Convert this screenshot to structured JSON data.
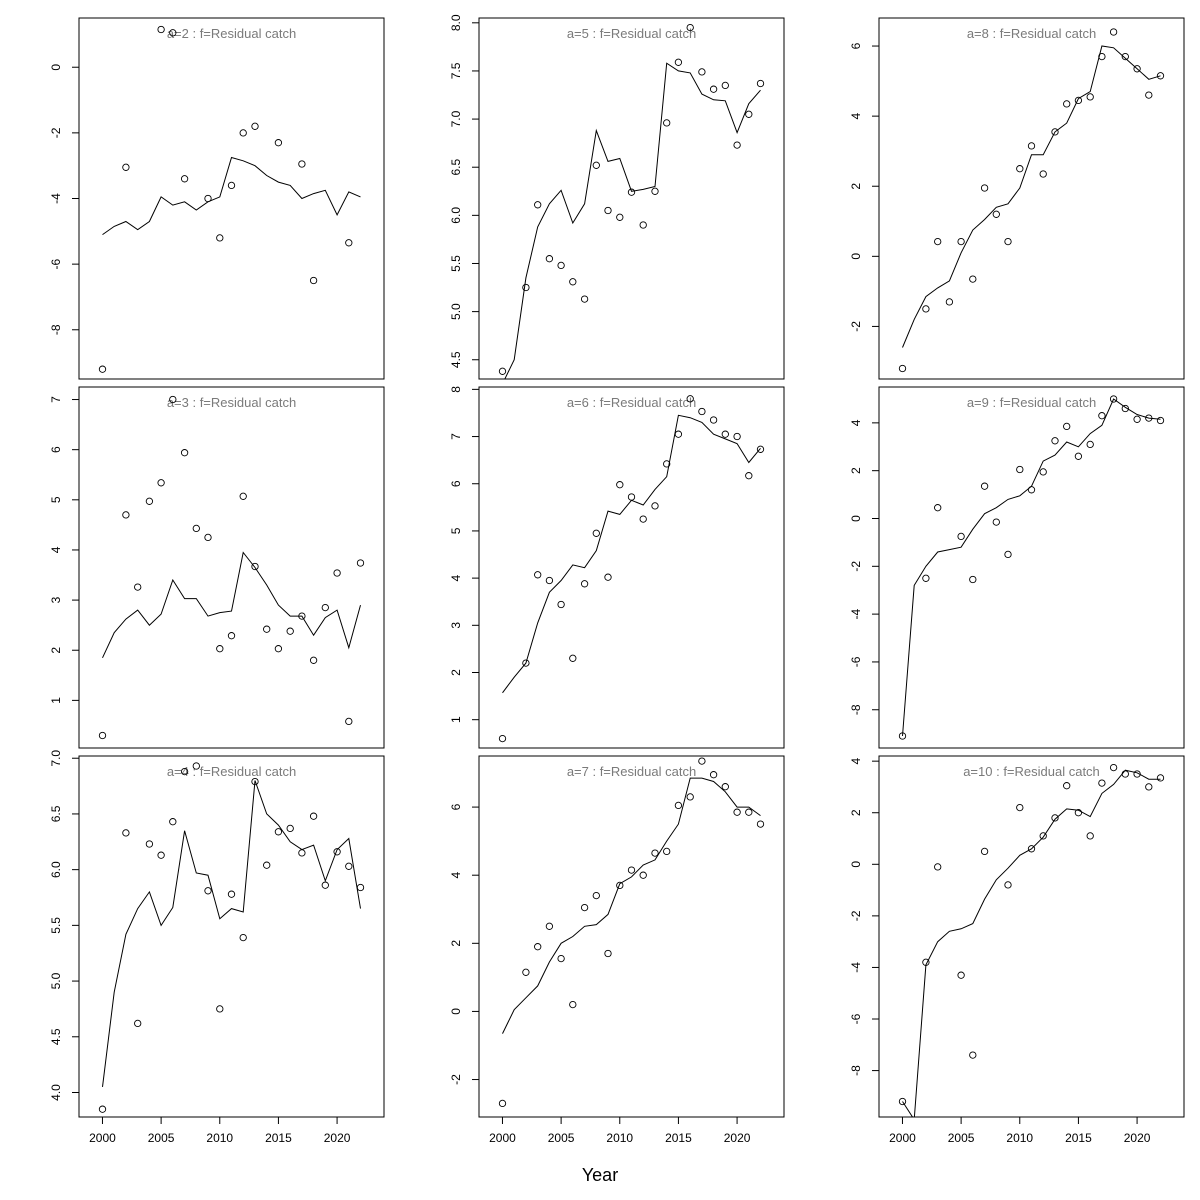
{
  "figure": {
    "xlabel": "Year"
  },
  "chart_data": [
    {
      "type": "line",
      "title": "a=2  :  f=Residual catch",
      "xlabel": "",
      "ylabel": "",
      "xlim": [
        1998,
        2024
      ],
      "ylim": [
        -9.5,
        1.5
      ],
      "xticks": [],
      "yticks": [
        0,
        -2,
        -4,
        -6,
        -8
      ],
      "series": [
        {
          "type": "line",
          "x": [
            2000,
            2001,
            2002,
            2003,
            2004,
            2005,
            2006,
            2007,
            2008,
            2009,
            2010,
            2011,
            2012,
            2013,
            2014,
            2015,
            2016,
            2017,
            2018,
            2019,
            2020,
            2021,
            2022
          ],
          "y": [
            -5.1,
            -4.85,
            -4.7,
            -4.95,
            -4.7,
            -3.95,
            -4.2,
            -4.1,
            -4.35,
            -4.1,
            -3.95,
            -2.75,
            -2.85,
            -3.0,
            -3.3,
            -3.5,
            -3.6,
            -4.0,
            -3.85,
            -3.75,
            -4.5,
            -3.8,
            -3.95
          ]
        },
        {
          "type": "scatter",
          "x": [
            2000,
            2002,
            2005,
            2006,
            2007,
            2009,
            2010,
            2011,
            2012,
            2013,
            2015,
            2017,
            2018,
            2021
          ],
          "y": [
            -9.2,
            -3.05,
            1.15,
            1.05,
            -3.4,
            -4.0,
            -5.2,
            -3.6,
            -2.0,
            -1.8,
            -2.3,
            -2.95,
            -6.5,
            -5.35
          ]
        }
      ]
    },
    {
      "type": "line",
      "title": "a=5  :  f=Residual catch",
      "xlabel": "",
      "ylabel": "",
      "xlim": [
        1998,
        2024
      ],
      "ylim": [
        4.3,
        8.05
      ],
      "xticks": [],
      "yticks": [
        4.5,
        5.0,
        5.5,
        6.0,
        6.5,
        7.0,
        7.5,
        8.0
      ],
      "series": [
        {
          "type": "line",
          "x": [
            2000,
            2001,
            2002,
            2003,
            2004,
            2005,
            2006,
            2007,
            2008,
            2009,
            2010,
            2011,
            2012,
            2013,
            2014,
            2015,
            2016,
            2017,
            2018,
            2019,
            2020,
            2021,
            2022
          ],
          "y": [
            4.25,
            4.5,
            5.35,
            5.88,
            6.12,
            6.26,
            5.92,
            6.12,
            6.88,
            6.56,
            6.59,
            6.25,
            6.27,
            6.3,
            7.58,
            7.5,
            7.48,
            7.26,
            7.2,
            7.19,
            6.86,
            7.16,
            7.3
          ]
        },
        {
          "type": "scatter",
          "x": [
            2000,
            2002,
            2003,
            2004,
            2005,
            2006,
            2007,
            2008,
            2009,
            2010,
            2011,
            2012,
            2013,
            2014,
            2015,
            2016,
            2017,
            2018,
            2019,
            2020,
            2021,
            2022
          ],
          "y": [
            4.38,
            5.25,
            6.11,
            5.55,
            5.48,
            5.31,
            5.13,
            6.52,
            6.05,
            5.98,
            6.24,
            5.9,
            6.25,
            6.96,
            7.59,
            7.95,
            7.49,
            7.31,
            7.35,
            6.73,
            7.05,
            7.37
          ]
        }
      ]
    },
    {
      "type": "line",
      "title": "a=8  :  f=Residual catch",
      "xlabel": "",
      "ylabel": "",
      "xlim": [
        1998,
        2024
      ],
      "ylim": [
        -3.5,
        6.8
      ],
      "xticks": [],
      "yticks": [
        -2,
        0,
        2,
        4,
        6
      ],
      "series": [
        {
          "type": "line",
          "x": [
            2000,
            2001,
            2002,
            2003,
            2004,
            2005,
            2006,
            2007,
            2008,
            2009,
            2010,
            2011,
            2012,
            2013,
            2014,
            2015,
            2016,
            2017,
            2018,
            2019,
            2020,
            2021,
            2022
          ],
          "y": [
            -2.6,
            -1.8,
            -1.15,
            -0.9,
            -0.7,
            0.1,
            0.75,
            1.05,
            1.4,
            1.5,
            1.95,
            2.9,
            2.9,
            3.55,
            3.8,
            4.5,
            4.7,
            6.0,
            5.95,
            5.65,
            5.35,
            5.05,
            5.15
          ]
        },
        {
          "type": "scatter",
          "x": [
            2000,
            2002,
            2003,
            2004,
            2005,
            2006,
            2007,
            2008,
            2009,
            2010,
            2011,
            2012,
            2013,
            2014,
            2015,
            2016,
            2017,
            2018,
            2019,
            2020,
            2021,
            2022
          ],
          "y": [
            -3.2,
            -1.5,
            0.42,
            -1.3,
            0.42,
            -0.65,
            1.95,
            1.2,
            0.42,
            2.5,
            3.15,
            2.35,
            3.55,
            4.35,
            4.45,
            4.55,
            5.7,
            6.4,
            5.7,
            5.35,
            4.6,
            5.15
          ]
        }
      ]
    },
    {
      "type": "line",
      "title": "a=3  :  f=Residual catch",
      "xlabel": "",
      "ylabel": "",
      "xlim": [
        1998,
        2024
      ],
      "ylim": [
        0.05,
        7.25
      ],
      "xticks": [],
      "yticks": [
        1,
        2,
        3,
        4,
        5,
        6,
        7
      ],
      "series": [
        {
          "type": "line",
          "x": [
            2000,
            2001,
            2002,
            2003,
            2004,
            2005,
            2006,
            2007,
            2008,
            2009,
            2010,
            2011,
            2012,
            2013,
            2014,
            2015,
            2016,
            2017,
            2018,
            2019,
            2020,
            2021,
            2022
          ],
          "y": [
            1.85,
            2.35,
            2.62,
            2.8,
            2.5,
            2.72,
            3.4,
            3.03,
            3.03,
            2.68,
            2.75,
            2.78,
            3.95,
            3.65,
            3.3,
            2.9,
            2.68,
            2.68,
            2.3,
            2.65,
            2.8,
            2.05,
            2.9
          ]
        },
        {
          "type": "scatter",
          "x": [
            2000,
            2002,
            2003,
            2004,
            2005,
            2006,
            2007,
            2008,
            2009,
            2010,
            2011,
            2012,
            2013,
            2014,
            2015,
            2016,
            2017,
            2018,
            2019,
            2020,
            2021,
            2022
          ],
          "y": [
            0.3,
            4.7,
            3.26,
            4.97,
            5.34,
            7.0,
            5.94,
            4.43,
            4.25,
            2.03,
            2.29,
            5.07,
            3.67,
            2.42,
            2.03,
            2.38,
            2.68,
            1.8,
            2.85,
            3.54,
            0.58,
            3.74
          ]
        }
      ]
    },
    {
      "type": "line",
      "title": "a=6  :  f=Residual catch",
      "xlabel": "",
      "ylabel": "",
      "xlim": [
        1998,
        2024
      ],
      "ylim": [
        0.4,
        8.05
      ],
      "xticks": [],
      "yticks": [
        1,
        2,
        3,
        4,
        5,
        6,
        7,
        8
      ],
      "series": [
        {
          "type": "line",
          "x": [
            2000,
            2001,
            2002,
            2003,
            2004,
            2005,
            2006,
            2007,
            2008,
            2009,
            2010,
            2011,
            2012,
            2013,
            2014,
            2015,
            2016,
            2017,
            2018,
            2019,
            2020,
            2021,
            2022
          ],
          "y": [
            1.57,
            1.9,
            2.2,
            3.05,
            3.7,
            3.95,
            4.28,
            4.22,
            4.58,
            5.42,
            5.35,
            5.65,
            5.55,
            5.88,
            6.15,
            7.45,
            7.4,
            7.3,
            7.05,
            6.95,
            6.85,
            6.45,
            6.75
          ]
        },
        {
          "type": "scatter",
          "x": [
            2000,
            2002,
            2003,
            2004,
            2005,
            2006,
            2007,
            2008,
            2009,
            2010,
            2011,
            2012,
            2013,
            2014,
            2015,
            2016,
            2017,
            2018,
            2019,
            2020,
            2021,
            2022
          ],
          "y": [
            0.6,
            2.2,
            4.07,
            3.95,
            3.44,
            2.3,
            3.88,
            4.95,
            4.02,
            5.98,
            5.72,
            5.25,
            5.53,
            6.42,
            7.05,
            7.8,
            7.53,
            7.35,
            7.05,
            7.0,
            6.17,
            6.73
          ]
        }
      ]
    },
    {
      "type": "line",
      "title": "a=9  :  f=Residual catch",
      "xlabel": "",
      "ylabel": "",
      "xlim": [
        1998,
        2024
      ],
      "ylim": [
        -9.6,
        5.5
      ],
      "xticks": [],
      "yticks": [
        4,
        2,
        0,
        -2,
        -4,
        -6,
        -8
      ],
      "series": [
        {
          "type": "line",
          "x": [
            2000,
            2001,
            2002,
            2003,
            2004,
            2005,
            2006,
            2007,
            2008,
            2009,
            2010,
            2011,
            2012,
            2013,
            2014,
            2015,
            2016,
            2017,
            2018,
            2019,
            2020,
            2021,
            2022
          ],
          "y": [
            -9.1,
            -2.8,
            -2.0,
            -1.4,
            -1.3,
            -1.2,
            -0.45,
            0.2,
            0.45,
            0.8,
            0.95,
            1.35,
            2.4,
            2.65,
            3.2,
            3.0,
            3.55,
            3.9,
            5.0,
            4.65,
            4.35,
            4.2,
            4.15
          ]
        },
        {
          "type": "scatter",
          "x": [
            2000,
            2002,
            2003,
            2005,
            2006,
            2007,
            2008,
            2009,
            2010,
            2011,
            2012,
            2013,
            2014,
            2015,
            2016,
            2017,
            2018,
            2019,
            2020,
            2021,
            2022
          ],
          "y": [
            -9.1,
            -2.5,
            0.45,
            -0.75,
            -2.55,
            1.35,
            -0.15,
            -1.5,
            2.05,
            1.2,
            1.95,
            3.25,
            3.85,
            2.6,
            3.1,
            4.3,
            5.0,
            4.6,
            4.15,
            4.2,
            4.1
          ]
        }
      ]
    },
    {
      "type": "line",
      "title": "a=4  :  f=Residual catch",
      "xlabel": "",
      "ylabel": "",
      "xlim": [
        1998,
        2024
      ],
      "ylim": [
        3.78,
        7.02
      ],
      "xticks": [
        2000,
        2005,
        2010,
        2015,
        2020
      ],
      "yticks": [
        4.0,
        4.5,
        5.0,
        5.5,
        6.0,
        6.5,
        7.0
      ],
      "series": [
        {
          "type": "line",
          "x": [
            2000,
            2001,
            2002,
            2003,
            2004,
            2005,
            2006,
            2007,
            2008,
            2009,
            2010,
            2011,
            2012,
            2013,
            2014,
            2015,
            2016,
            2017,
            2018,
            2019,
            2020,
            2021,
            2022
          ],
          "y": [
            4.05,
            4.9,
            5.42,
            5.65,
            5.8,
            5.5,
            5.66,
            6.35,
            5.97,
            5.95,
            5.56,
            5.65,
            5.62,
            6.8,
            6.5,
            6.4,
            6.25,
            6.18,
            6.22,
            5.9,
            6.18,
            6.28,
            5.65
          ]
        },
        {
          "type": "scatter",
          "x": [
            2000,
            2002,
            2003,
            2004,
            2005,
            2006,
            2007,
            2008,
            2009,
            2010,
            2011,
            2012,
            2013,
            2014,
            2015,
            2016,
            2017,
            2018,
            2019,
            2020,
            2021,
            2022
          ],
          "y": [
            3.85,
            6.33,
            4.62,
            6.23,
            6.13,
            6.43,
            6.88,
            6.93,
            5.81,
            4.75,
            5.78,
            5.39,
            6.79,
            6.04,
            6.34,
            6.37,
            6.15,
            6.48,
            5.86,
            6.16,
            6.03,
            5.84
          ]
        }
      ]
    },
    {
      "type": "line",
      "title": "a=7  :  f=Residual catch",
      "xlabel": "",
      "ylabel": "",
      "xlim": [
        1998,
        2024
      ],
      "ylim": [
        -3.1,
        7.5
      ],
      "xticks": [
        2000,
        2005,
        2010,
        2015,
        2020
      ],
      "yticks": [
        -2,
        0,
        2,
        4,
        6
      ],
      "series": [
        {
          "type": "line",
          "x": [
            2000,
            2001,
            2002,
            2003,
            2004,
            2005,
            2006,
            2007,
            2008,
            2009,
            2010,
            2011,
            2012,
            2013,
            2014,
            2015,
            2016,
            2017,
            2018,
            2019,
            2020,
            2021,
            2022
          ],
          "y": [
            -0.65,
            0.05,
            0.4,
            0.75,
            1.45,
            2.0,
            2.2,
            2.5,
            2.55,
            2.85,
            3.75,
            3.95,
            4.3,
            4.45,
            5.0,
            5.5,
            6.85,
            6.85,
            6.75,
            6.45,
            6.0,
            6.0,
            5.75
          ]
        },
        {
          "type": "scatter",
          "x": [
            2000,
            2002,
            2003,
            2004,
            2005,
            2006,
            2007,
            2008,
            2009,
            2010,
            2011,
            2012,
            2013,
            2014,
            2015,
            2016,
            2017,
            2018,
            2019,
            2020,
            2021,
            2022
          ],
          "y": [
            -2.7,
            1.15,
            1.9,
            2.5,
            1.55,
            0.2,
            3.05,
            3.4,
            1.7,
            3.7,
            4.15,
            4.0,
            4.65,
            4.7,
            6.05,
            6.3,
            7.35,
            6.95,
            6.6,
            5.85,
            5.85,
            5.5
          ]
        }
      ]
    },
    {
      "type": "line",
      "title": "a=10  :  f=Residual catch",
      "xlabel": "",
      "ylabel": "",
      "xlim": [
        1998,
        2024
      ],
      "ylim": [
        -9.8,
        4.2
      ],
      "xticks": [
        2000,
        2005,
        2010,
        2015,
        2020
      ],
      "yticks": [
        4,
        2,
        0,
        -2,
        -4,
        -6,
        -8
      ],
      "series": [
        {
          "type": "line",
          "x": [
            2000,
            2001,
            2002,
            2003,
            2004,
            2005,
            2006,
            2007,
            2008,
            2009,
            2010,
            2011,
            2012,
            2013,
            2014,
            2015,
            2016,
            2017,
            2018,
            2019,
            2020,
            2021,
            2022
          ],
          "y": [
            -9.2,
            -9.9,
            -3.9,
            -3.0,
            -2.6,
            -2.5,
            -2.3,
            -1.35,
            -0.6,
            -0.15,
            0.35,
            0.6,
            1.05,
            1.75,
            2.15,
            2.1,
            1.85,
            2.75,
            3.1,
            3.65,
            3.55,
            3.3,
            3.3
          ]
        },
        {
          "type": "scatter",
          "x": [
            2000,
            2002,
            2003,
            2005,
            2006,
            2007,
            2009,
            2010,
            2011,
            2012,
            2013,
            2014,
            2015,
            2016,
            2017,
            2018,
            2019,
            2020,
            2021,
            2022
          ],
          "y": [
            -9.2,
            -3.8,
            -0.1,
            -4.3,
            -7.4,
            0.5,
            -0.8,
            2.2,
            0.6,
            1.1,
            1.8,
            3.05,
            2.0,
            1.1,
            3.15,
            3.75,
            3.5,
            3.5,
            3.0,
            3.35
          ]
        }
      ]
    }
  ]
}
